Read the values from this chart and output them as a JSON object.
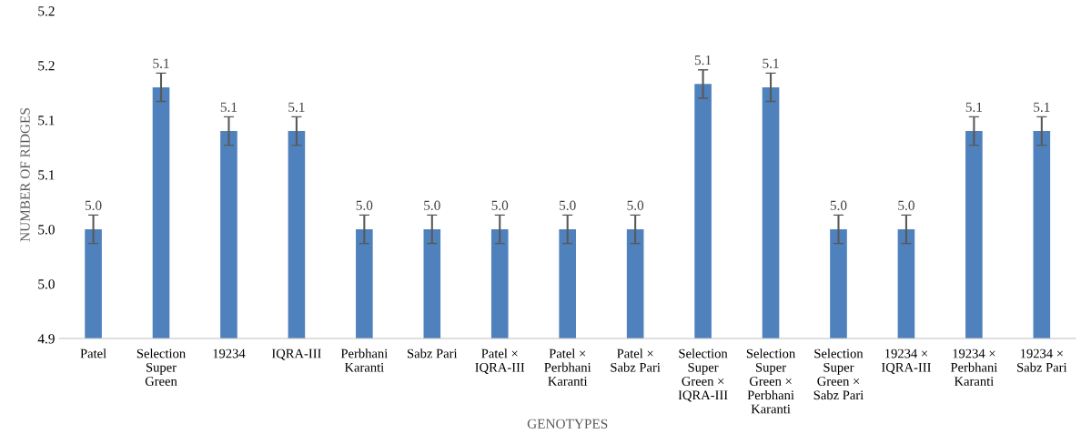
{
  "chart_data": {
    "type": "bar",
    "xlabel": "GENOTYPES",
    "ylabel": "NUMBER OF RIDGES",
    "categories": [
      "Patel",
      "Selection\nSuper\nGreen",
      "19234",
      "IQRA-III",
      "Perbhani\nKaranti",
      "Sabz Pari",
      "Patel ×\nIQRA-III",
      "Patel ×\nPerbhani\nKaranti",
      "Patel ×\nSabz Pari",
      "Selection\nSuper\nGreen ×\nIQRA-III",
      "Selection\nSuper\nGreen ×\nPerbhani\nKaranti",
      "Selection\nSuper\nGreen ×\nSabz Pari",
      "19234 ×\nIQRA-III",
      "19234 ×\nPerbhani\nKaranti",
      "19234 ×\nSabz Pari"
    ],
    "values": [
      5.0,
      5.13,
      5.09,
      5.09,
      5.0,
      5.0,
      5.0,
      5.0,
      5.0,
      5.133,
      5.13,
      5.0,
      5.0,
      5.09,
      5.09
    ],
    "errors": [
      0.013,
      0.013,
      0.013,
      0.013,
      0.013,
      0.013,
      0.013,
      0.013,
      0.013,
      0.013,
      0.013,
      0.013,
      0.013,
      0.013,
      0.013
    ],
    "value_labels": [
      "5.0",
      "5.1",
      "5.1",
      "5.1",
      "5.0",
      "5.0",
      "5.0",
      "5.0",
      "5.0",
      "5.1",
      "5.1",
      "5.0",
      "5.0",
      "5.1",
      "5.1"
    ],
    "color": "#4f81bd",
    "ylim": [
      4.9,
      5.2
    ],
    "yticks": [
      {
        "value": 4.9,
        "label": "4.9"
      },
      {
        "value": 4.95,
        "label": "5.0"
      },
      {
        "value": 5.0,
        "label": "5.0"
      },
      {
        "value": 5.05,
        "label": "5.1"
      },
      {
        "value": 5.1,
        "label": "5.1"
      },
      {
        "value": 5.15,
        "label": "5.2"
      },
      {
        "value": 5.2,
        "label": "5.2"
      }
    ],
    "grid": false,
    "legend": false
  }
}
